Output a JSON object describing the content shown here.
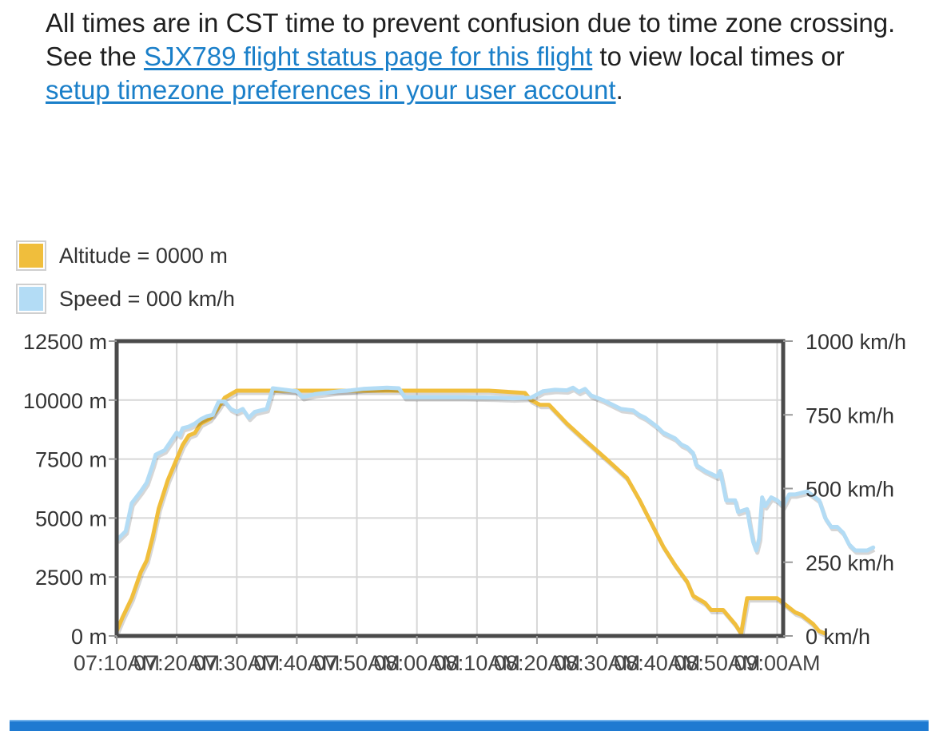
{
  "intro": {
    "text_before": "All times are in CST time to prevent confusion due to time zone crossing. See the ",
    "link1": "SJX789 flight status page for this flight",
    "text_middle": " to view local times or ",
    "link2": "setup timezone preferences in your user account",
    "text_after": "."
  },
  "legend": [
    {
      "label": "Altitude = 0000 m",
      "color": "#f0be3c"
    },
    {
      "label": "Speed = 000 km/h",
      "color": "#b3dcf5"
    }
  ],
  "chart_data": {
    "type": "line",
    "grid": true,
    "x_tick_labels": [
      "07:10AM",
      "07:20AM",
      "07:30AM",
      "07:40AM",
      "07:50AM",
      "08:00AM",
      "08:10AM",
      "08:20AM",
      "08:30AM",
      "08:40AM",
      "08:50AM",
      "09:00AM"
    ],
    "x_range_minutes": [
      0,
      111
    ],
    "y_left": {
      "unit": "m",
      "range": [
        0,
        12500
      ],
      "ticks": [
        "0 m",
        "2500 m",
        "5000 m",
        "7500 m",
        "10000 m",
        "12500 m"
      ]
    },
    "y_right": {
      "unit": "km/h",
      "range": [
        0,
        1000
      ],
      "ticks": [
        "0 km/h",
        "250 km/h",
        "500 km/h",
        "750 km/h",
        "1000 km/h"
      ]
    },
    "series": [
      {
        "name": "Altitude",
        "axis": "left",
        "color": "#f0be3c",
        "points": [
          [
            0,
            200
          ],
          [
            1,
            800
          ],
          [
            2.5,
            1600
          ],
          [
            4,
            2700
          ],
          [
            5,
            3200
          ],
          [
            6,
            4200
          ],
          [
            7,
            5400
          ],
          [
            8.5,
            6600
          ],
          [
            10,
            7500
          ],
          [
            11,
            8100
          ],
          [
            12,
            8500
          ],
          [
            13,
            8600
          ],
          [
            14,
            9000
          ],
          [
            15.5,
            9200
          ],
          [
            17,
            9700
          ],
          [
            18,
            10100
          ],
          [
            20,
            10400
          ],
          [
            28,
            10400
          ],
          [
            35,
            10400
          ],
          [
            45,
            10400
          ],
          [
            55,
            10400
          ],
          [
            62,
            10400
          ],
          [
            68,
            10300
          ],
          [
            69,
            10000
          ],
          [
            70.5,
            9800
          ],
          [
            72,
            9800
          ],
          [
            75,
            9000
          ],
          [
            78,
            8300
          ],
          [
            82,
            7400
          ],
          [
            85,
            6700
          ],
          [
            87,
            5800
          ],
          [
            89,
            4800
          ],
          [
            91,
            3800
          ],
          [
            93,
            3000
          ],
          [
            95,
            2300
          ],
          [
            96,
            1700
          ],
          [
            98,
            1400
          ],
          [
            99,
            1100
          ],
          [
            101,
            1100
          ],
          [
            103,
            500
          ],
          [
            104,
            100
          ],
          [
            105,
            1600
          ],
          [
            107,
            1600
          ],
          [
            110,
            1600
          ],
          [
            112,
            1200
          ],
          [
            113,
            1000
          ],
          [
            114,
            900
          ],
          [
            115,
            700
          ],
          [
            116,
            500
          ],
          [
            117,
            200
          ],
          [
            118,
            100
          ]
        ]
      },
      {
        "name": "Speed",
        "axis": "right",
        "color": "#b3dcf5",
        "points": [
          [
            0,
            325
          ],
          [
            1.5,
            355
          ],
          [
            2.5,
            450
          ],
          [
            4,
            490
          ],
          [
            5,
            520
          ],
          [
            6,
            580
          ],
          [
            6.5,
            615
          ],
          [
            8,
            630
          ],
          [
            9,
            660
          ],
          [
            10,
            690
          ],
          [
            10.5,
            680
          ],
          [
            11,
            705
          ],
          [
            12,
            710
          ],
          [
            13,
            720
          ],
          [
            14,
            735
          ],
          [
            15,
            745
          ],
          [
            16,
            750
          ],
          [
            17,
            795
          ],
          [
            18,
            795
          ],
          [
            19,
            770
          ],
          [
            20,
            760
          ],
          [
            21,
            770
          ],
          [
            22,
            740
          ],
          [
            23,
            760
          ],
          [
            24,
            765
          ],
          [
            25,
            770
          ],
          [
            26,
            840
          ],
          [
            28,
            835
          ],
          [
            30,
            830
          ],
          [
            31,
            810
          ],
          [
            33,
            820
          ],
          [
            35,
            825
          ],
          [
            37,
            830
          ],
          [
            39,
            833
          ],
          [
            41,
            838
          ],
          [
            43,
            840
          ],
          [
            45,
            842
          ],
          [
            47,
            840
          ],
          [
            48,
            810
          ],
          [
            53,
            810
          ],
          [
            58,
            810
          ],
          [
            63,
            808
          ],
          [
            66,
            806
          ],
          [
            69,
            808
          ],
          [
            71,
            830
          ],
          [
            73,
            835
          ],
          [
            75,
            833
          ],
          [
            76,
            842
          ],
          [
            77,
            828
          ],
          [
            78,
            838
          ],
          [
            79,
            816
          ],
          [
            81,
            800
          ],
          [
            82,
            790
          ],
          [
            84,
            770
          ],
          [
            86,
            765
          ],
          [
            87,
            750
          ],
          [
            88,
            740
          ],
          [
            90,
            710
          ],
          [
            91,
            690
          ],
          [
            93,
            670
          ],
          [
            94,
            650
          ],
          [
            95,
            640
          ],
          [
            96,
            620
          ],
          [
            96.5,
            580
          ],
          [
            98,
            560
          ],
          [
            99,
            550
          ],
          [
            100,
            540
          ],
          [
            100.5,
            560
          ],
          [
            101,
            510
          ],
          [
            101.5,
            460
          ],
          [
            103,
            460
          ],
          [
            103.5,
            420
          ],
          [
            105,
            430
          ],
          [
            105.5,
            370
          ],
          [
            106,
            320
          ],
          [
            106.5,
            290
          ],
          [
            107,
            330
          ],
          [
            107.5,
            470
          ],
          [
            108,
            440
          ],
          [
            109,
            470
          ],
          [
            110,
            460
          ],
          [
            111,
            440
          ],
          [
            112,
            480
          ],
          [
            113,
            480
          ],
          [
            115,
            490
          ],
          [
            116,
            475
          ],
          [
            117,
            460
          ],
          [
            117.5,
            430
          ],
          [
            118,
            400
          ],
          [
            119,
            370
          ],
          [
            120,
            370
          ],
          [
            121,
            350
          ],
          [
            122,
            310
          ],
          [
            123,
            290
          ],
          [
            125,
            290
          ],
          [
            126,
            300
          ]
        ]
      }
    ]
  }
}
